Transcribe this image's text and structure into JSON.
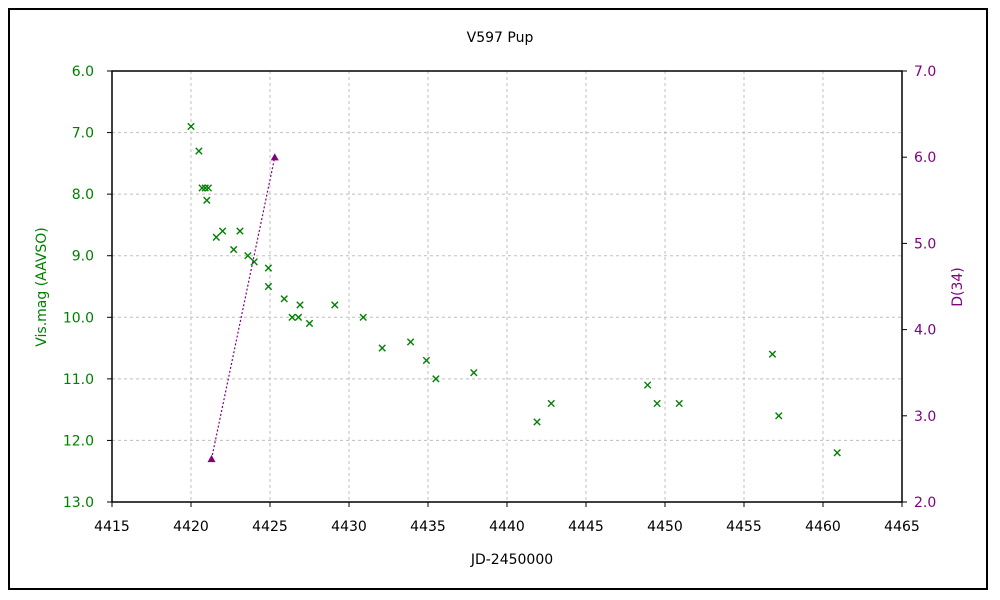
{
  "chart_data": {
    "type": "scatter",
    "title": "V597 Pup",
    "xlabel": "JD-2450000",
    "ylabel_left": "Vis.mag (AAVSO)",
    "ylabel_right": "D(34)",
    "xlim": [
      4415,
      4465
    ],
    "ylim_left": [
      6.0,
      13.0
    ],
    "ylim_left_inverted": true,
    "ylim_right": [
      2.0,
      7.0
    ],
    "x_ticks": [
      "4415",
      "4420",
      "4425",
      "4430",
      "4435",
      "4440",
      "4445",
      "4450",
      "4455",
      "4460",
      "4465"
    ],
    "y_left_ticks": [
      "6.0",
      "7.0",
      "8.0",
      "9.0",
      "10.0",
      "11.0",
      "12.0",
      "13.0"
    ],
    "y_right_ticks": [
      "7.0",
      "6.0",
      "5.0",
      "4.0",
      "3.0",
      "2.0"
    ],
    "grid": true,
    "colors": {
      "left": "#008000",
      "right": "#800080",
      "grid": "#bfbfbf"
    },
    "series": [
      {
        "axis": "left",
        "marker": "x",
        "color": "#008000",
        "points": [
          [
            4420.0,
            6.9
          ],
          [
            4420.5,
            7.3
          ],
          [
            4420.7,
            7.9
          ],
          [
            4420.9,
            7.9
          ],
          [
            4421.1,
            7.9
          ],
          [
            4421.0,
            8.1
          ],
          [
            4421.6,
            8.7
          ],
          [
            4422.0,
            8.6
          ],
          [
            4422.7,
            8.9
          ],
          [
            4423.1,
            8.6
          ],
          [
            4423.6,
            9.0
          ],
          [
            4424.0,
            9.1
          ],
          [
            4424.9,
            9.2
          ],
          [
            4424.9,
            9.5
          ],
          [
            4425.9,
            9.7
          ],
          [
            4426.4,
            10.0
          ],
          [
            4426.8,
            10.0
          ],
          [
            4426.9,
            9.8
          ],
          [
            4427.5,
            10.1
          ],
          [
            4429.1,
            9.8
          ],
          [
            4430.9,
            10.0
          ],
          [
            4432.1,
            10.5
          ],
          [
            4433.9,
            10.4
          ],
          [
            4434.9,
            10.7
          ],
          [
            4435.5,
            11.0
          ],
          [
            4437.9,
            10.9
          ],
          [
            4441.9,
            11.7
          ],
          [
            4442.8,
            11.4
          ],
          [
            4448.9,
            11.1
          ],
          [
            4449.5,
            11.4
          ],
          [
            4450.9,
            11.4
          ],
          [
            4456.8,
            10.6
          ],
          [
            4457.2,
            11.6
          ],
          [
            4460.9,
            12.2
          ]
        ]
      },
      {
        "axis": "right",
        "marker": "triangle",
        "line": "dotted",
        "color": "#800080",
        "points": [
          [
            4421.3,
            2.5
          ],
          [
            4425.3,
            6.0
          ]
        ]
      }
    ]
  }
}
